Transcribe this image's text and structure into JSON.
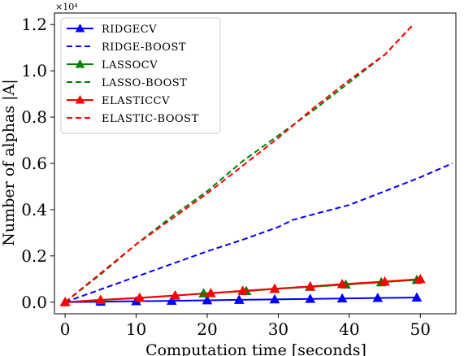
{
  "chart_data": {
    "type": "line",
    "title": "",
    "xlabel": "Computation time [seconds]",
    "ylabel": "Number of alphas |A|",
    "y_offset_label": "×10⁴",
    "xlim": [
      -1.5,
      55
    ],
    "ylim": [
      -0.05,
      1.25
    ],
    "xticks": [
      0,
      10,
      20,
      30,
      40,
      50
    ],
    "yticks": [
      0.0,
      0.2,
      0.4,
      0.6,
      0.8,
      1.0,
      1.2
    ],
    "xtick_labels": [
      "0",
      "10",
      "20",
      "30",
      "40",
      "50"
    ],
    "ytick_labels": [
      "0.0",
      "0.2",
      "0.4",
      "0.6",
      "0.8",
      "1.0",
      "1.2"
    ],
    "legend_position": "top-left",
    "grid": false,
    "series": [
      {
        "name": "RIDGECV",
        "color": "#0000ff",
        "style": "solid",
        "marker": "triangle",
        "x": [
          0,
          5,
          10,
          15,
          20,
          24.5,
          29.5,
          34.5,
          39,
          44,
          49.5
        ],
        "y": [
          0,
          0.002,
          0.004,
          0.006,
          0.008,
          0.01,
          0.012,
          0.014,
          0.016,
          0.018,
          0.02
        ]
      },
      {
        "name": "RIDGE-BOOST",
        "color": "#0000ff",
        "style": "dashed",
        "marker": "none",
        "x": [
          0,
          5,
          10,
          15,
          20,
          25,
          30,
          32,
          35,
          40,
          45,
          50,
          54.5
        ],
        "y": [
          0,
          0.055,
          0.11,
          0.165,
          0.22,
          0.27,
          0.325,
          0.355,
          0.38,
          0.42,
          0.48,
          0.54,
          0.6
        ]
      },
      {
        "name": "LASSOCV",
        "color": "#008000",
        "style": "solid",
        "marker": "triangle",
        "x": [
          0,
          5,
          10.5,
          15.5,
          19.5,
          25.5,
          29.5,
          34.5,
          39.5,
          44.5,
          49.5
        ],
        "y": [
          0,
          0.009,
          0.018,
          0.028,
          0.038,
          0.048,
          0.057,
          0.066,
          0.076,
          0.086,
          0.096
        ]
      },
      {
        "name": "LASSO-BOOST",
        "color": "#008000",
        "style": "dashed",
        "marker": "none",
        "x": [
          0,
          5,
          10,
          15,
          20,
          25,
          30,
          35,
          40,
          45,
          49
        ],
        "y": [
          0,
          0.12,
          0.25,
          0.37,
          0.48,
          0.61,
          0.72,
          0.83,
          0.95,
          1.07,
          1.2
        ]
      },
      {
        "name": "ELASTICCV",
        "color": "#ff0000",
        "style": "solid",
        "marker": "triangle",
        "x": [
          0,
          5,
          10.5,
          15.5,
          20.5,
          25,
          29.5,
          34.5,
          39,
          45,
          50
        ],
        "y": [
          0,
          0.01,
          0.019,
          0.029,
          0.039,
          0.049,
          0.058,
          0.068,
          0.078,
          0.089,
          0.1
        ]
      },
      {
        "name": "ELASTIC-BOOST",
        "color": "#ff0000",
        "style": "dashed",
        "marker": "none",
        "x": [
          0,
          5,
          10,
          15,
          20,
          25,
          30,
          35,
          40,
          45,
          49
        ],
        "y": [
          0,
          0.125,
          0.25,
          0.36,
          0.47,
          0.59,
          0.71,
          0.84,
          0.96,
          1.07,
          1.2
        ]
      }
    ]
  }
}
